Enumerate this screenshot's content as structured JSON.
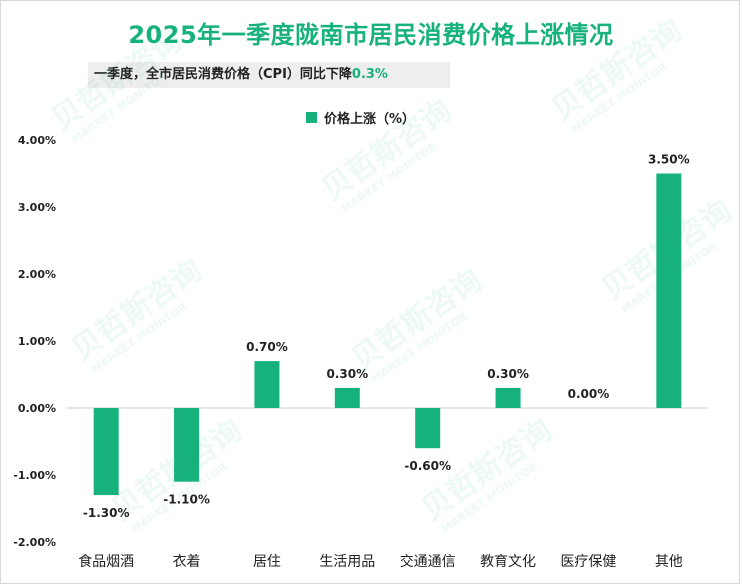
{
  "title": "2025年一季度陇南市居民消费价格上涨情况",
  "subtitle": {
    "text": "一季度，全市居民消费价格（CPI）同比下降",
    "value": "0.3%"
  },
  "watermark": {
    "cn": "贝哲斯咨询",
    "en": "MARKET MONITOR"
  },
  "colors": {
    "bar": "#17b27c",
    "title": "#17b27c",
    "text": "#222222"
  },
  "chart_data": {
    "type": "bar",
    "title": "2025年一季度陇南市居民消费价格上涨情况",
    "categories": [
      "食品烟酒",
      "衣着",
      "居住",
      "生活用品",
      "交通通信",
      "教育文化",
      "医疗保健",
      "其他"
    ],
    "series": [
      {
        "name": "价格上涨（%）",
        "values": [
          -1.3,
          -1.1,
          0.7,
          0.3,
          -0.6,
          0.3,
          0.0,
          3.5
        ],
        "labels": [
          "-1.30%",
          "-1.10%",
          "0.70%",
          "0.30%",
          "-0.60%",
          "0.30%",
          "0.00%",
          "3.50%"
        ]
      }
    ],
    "yticks": [
      4.0,
      3.0,
      2.0,
      1.0,
      0.0,
      -1.0,
      -2.0
    ],
    "ytick_labels": [
      "4.00%",
      "3.00%",
      "2.00%",
      "1.00%",
      "0.00%",
      "-1.00%",
      "-2.00%"
    ],
    "ylim": [
      -2.0,
      4.0
    ],
    "xlabel": "",
    "ylabel": "",
    "grid": false,
    "legend_position": "top-center"
  }
}
